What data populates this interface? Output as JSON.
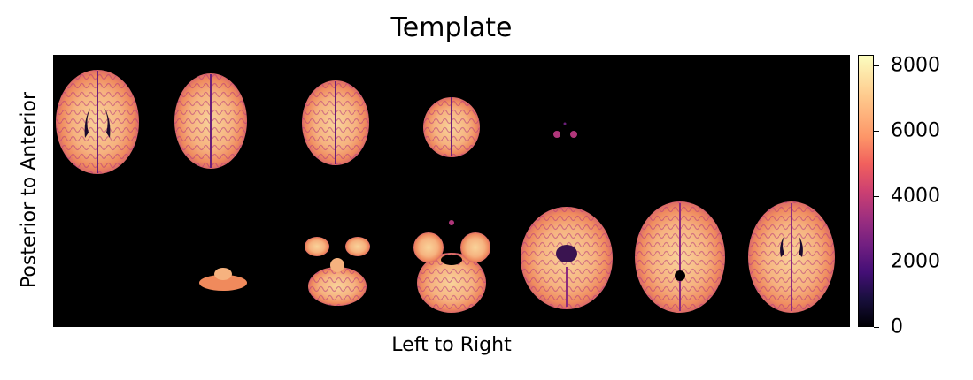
{
  "figure": {
    "title": "Template",
    "xlabel": "Left to Right",
    "ylabel": "Posterior to Anterior"
  },
  "panel": {
    "description_color_map": "magma"
  },
  "colorbar": {
    "ticks": [
      "0",
      "2000",
      "4000",
      "6000",
      "8000"
    ],
    "min": 0,
    "max": 8300
  },
  "colors": {
    "background": "#000000",
    "brain_light": "#f7c48f",
    "brain_mid": "#f08a5c",
    "brain_dark": "#b0367a",
    "brain_deep": "#5c1c7a"
  }
}
